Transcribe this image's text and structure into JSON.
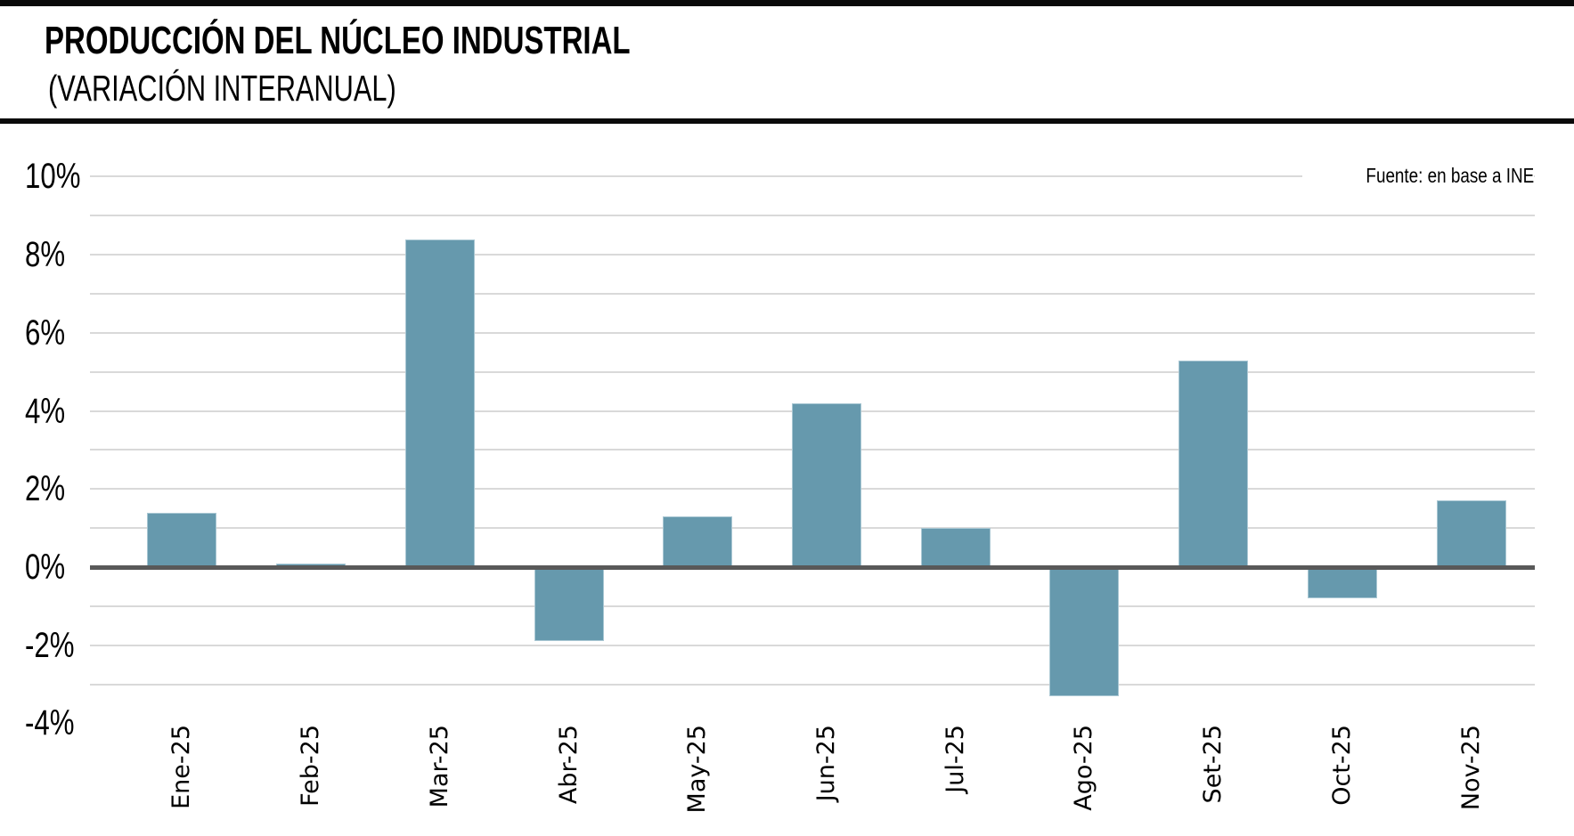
{
  "header": {
    "title": "PRODUCCIÓN DEL NÚCLEO INDUSTRIAL",
    "subtitle": "(VARIACIÓN INTERANUAL)"
  },
  "colors": {
    "bar_fill": "#6699ad",
    "bar_edge": "#a9c7d3",
    "zero_line": "#595959",
    "gridline": "#d9d9d9",
    "text": "#000000",
    "header_bar": "#0a0a0a"
  },
  "chart_data": {
    "type": "bar",
    "title": "PRODUCCIÓN DEL NÚCLEO INDUSTRIAL (VARIACIÓN INTERANUAL)",
    "source": "Fuente: en base a INE",
    "unit": "%",
    "categories": [
      "Ene-25",
      "Feb-25",
      "Mar-25",
      "Abr-25",
      "May-25",
      "Jun-25",
      "Jul-25",
      "Ago-25",
      "Set-25",
      "Oct-25",
      "Nov-25"
    ],
    "values": [
      1.4,
      0.1,
      8.4,
      -1.9,
      1.3,
      4.2,
      1.0,
      -3.3,
      5.3,
      -0.8,
      1.7
    ],
    "xlabel": "",
    "ylabel": "",
    "ylim": [
      -4,
      10
    ],
    "y_tick_labels": [
      "10%",
      "8%",
      "6%",
      "4%",
      "2%",
      "0%",
      "-2%",
      "-4%"
    ],
    "y_tick_values": [
      10,
      8,
      6,
      4,
      2,
      0,
      -2,
      -4
    ],
    "gridline_step_pct": 1,
    "grid": "horizontal gridlines every 1%, no line at -4%",
    "legend": "none",
    "x_label_rotation_deg": -90
  }
}
